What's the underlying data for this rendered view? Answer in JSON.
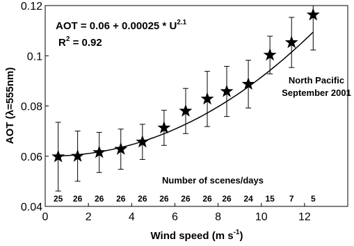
{
  "chart_data": {
    "type": "scatter",
    "y_label": "AOT (λ=555nm)",
    "x_label": {
      "text": "Wind speed (m s",
      "superscript": "-1",
      "suffix": ")"
    },
    "equation": {
      "text": "AOT = 0.06 + 0.00025 * U",
      "superscript": "2.1"
    },
    "fit": {
      "intercept": 0.06,
      "coefficient": 0.00025,
      "exponent": 2.1
    },
    "r_squared": {
      "text": "R",
      "superscript": "2",
      "suffix": " = 0.92"
    },
    "annotations": [
      "North Pacific",
      "September 2001",
      "Number of scenes/days"
    ],
    "x": [
      0.6,
      1.5,
      2.5,
      3.5,
      4.5,
      5.5,
      6.5,
      7.5,
      8.4,
      9.4,
      10.4,
      11.4,
      12.4
    ],
    "values": [
      0.0598,
      0.06,
      0.0615,
      0.0628,
      0.0657,
      0.0713,
      0.078,
      0.0828,
      0.0858,
      0.0887,
      0.1003,
      0.1053,
      0.1163
    ],
    "errors": [
      0.0137,
      0.01,
      0.008,
      0.008,
      0.007,
      0.007,
      0.009,
      0.011,
      0.01,
      0.0095,
      0.0075,
      0.01,
      0.014
    ],
    "counts": [
      25,
      26,
      26,
      26,
      26,
      26,
      26,
      26,
      26,
      24,
      15,
      7,
      5
    ],
    "color": "#000000",
    "xlim": [
      0,
      14
    ],
    "xticks": [
      0,
      2,
      4,
      6,
      8,
      10,
      12
    ],
    "ylim": [
      0.04,
      0.12
    ],
    "yticks": [
      0.04,
      0.06,
      0.08,
      0.1,
      0.12
    ],
    "grid": false
  }
}
